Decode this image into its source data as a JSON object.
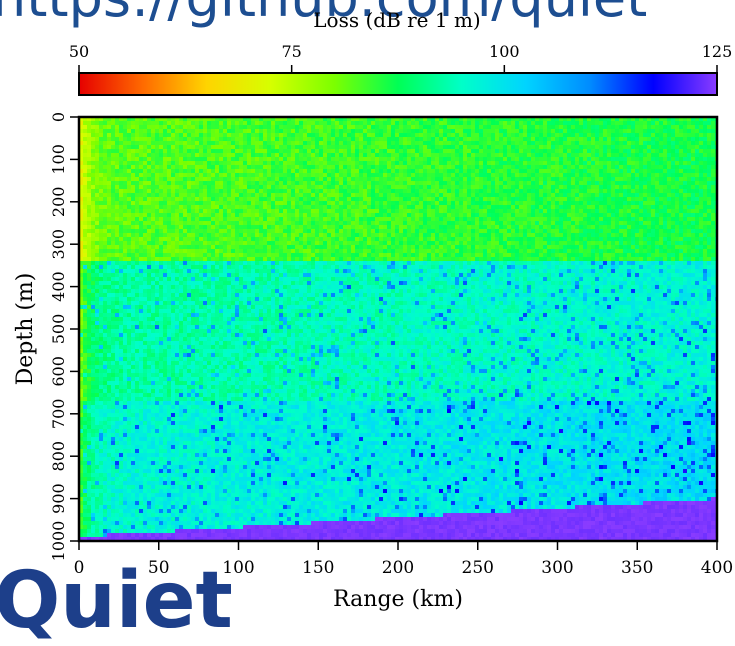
{
  "banner_text": "https://github.com/quiet",
  "logo_text": "Quiet",
  "chart_data": {
    "type": "heatmap",
    "title": "Loss (dB re 1 m)",
    "xlabel": "Range (km)",
    "ylabel": "Depth (m)",
    "x_range": [
      0,
      400
    ],
    "y_range": [
      0,
      1000
    ],
    "y_inverted": true,
    "x_ticks": [
      0,
      50,
      100,
      150,
      200,
      250,
      300,
      350,
      400
    ],
    "y_ticks": [
      0,
      100,
      200,
      300,
      400,
      500,
      600,
      700,
      800,
      900,
      1000
    ],
    "colorbar": {
      "range": [
        50,
        125
      ],
      "ticks": [
        50,
        75,
        100,
        125
      ],
      "colors": [
        "#e60000",
        "#ff6a00",
        "#ffd400",
        "#d6ff00",
        "#7cff00",
        "#00ff55",
        "#00ffc8",
        "#00d4ff",
        "#008cff",
        "#0000ff",
        "#8a3cff"
      ]
    },
    "layers": [
      {
        "depth_range": [
          0,
          335
        ],
        "typical_loss": 82
      },
      {
        "depth_range": [
          335,
          670
        ],
        "typical_loss": 92
      },
      {
        "depth_range": [
          670,
          1000
        ],
        "typical_loss": 96
      }
    ],
    "seabed": {
      "depth_at_range_0_km": 990,
      "depth_at_range_400_km": 900,
      "loss": 125
    },
    "grid": false,
    "legend": "none"
  }
}
